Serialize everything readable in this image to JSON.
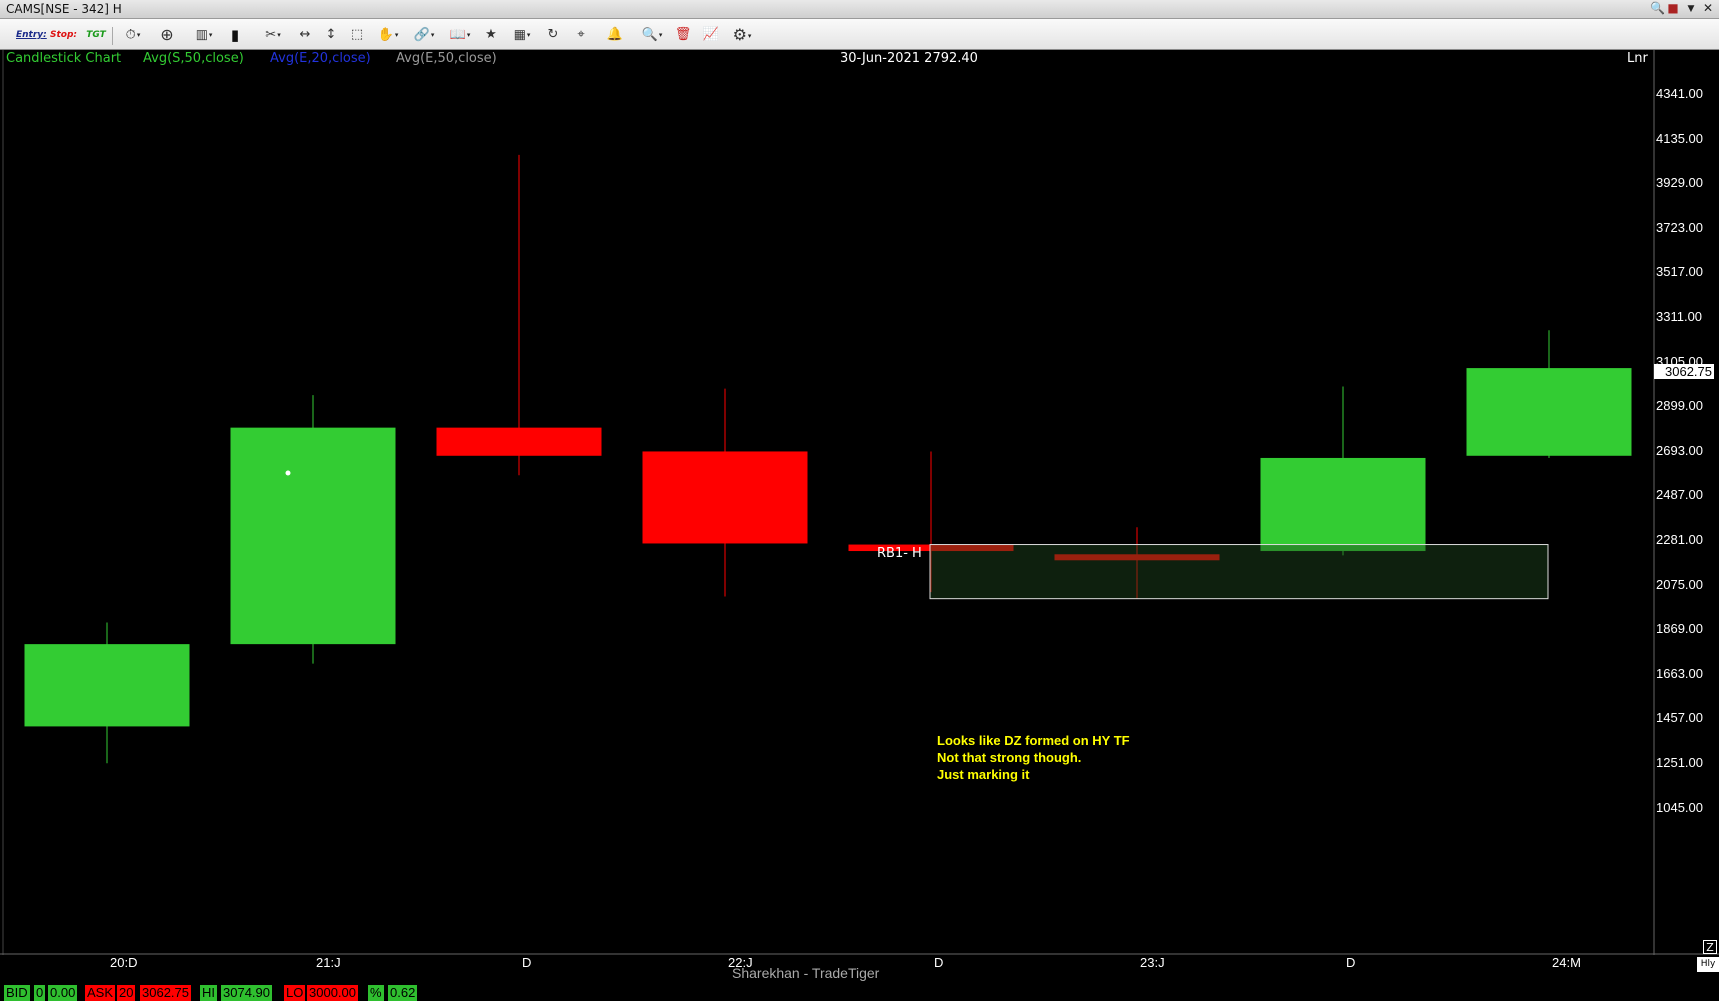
{
  "window": {
    "title": "CAMS[NSE - 342] H",
    "controls": [
      "search-icon",
      "save-icon",
      "menu-icon",
      "close-icon"
    ]
  },
  "toolbar": {
    "entry_label": "Entry:",
    "stop_label": "Stop:",
    "tgt_label": "TGT",
    "icons": [
      "stopwatch-icon",
      "crosshair-icon",
      "chart-type-icon",
      "candles-icon",
      "draw-tools-icon",
      "horizontal-line-icon",
      "vertical-line-icon",
      "zoom-box-icon",
      "hand-icon",
      "link-icon",
      "book-icon",
      "star-icon",
      "indicator-icon",
      "refresh-icon",
      "cursor-icon",
      "alert-icon",
      "search-icon",
      "delete-icon",
      "study-icon",
      "settings-icon"
    ]
  },
  "header": {
    "chart_type": "Candlestick Chart",
    "indicators": [
      {
        "label": "Avg(S,50,close)",
        "color": "#33cc33"
      },
      {
        "label": "Avg(E,20,close)",
        "color": "#2233dd"
      },
      {
        "label": "Avg(E,50,close)",
        "color": "#9a9a9a"
      }
    ],
    "cursor_readout": "30-Jun-2021 2792.40",
    "scale_mode": "Lnr"
  },
  "chart_data": {
    "type": "candlestick",
    "x_labels": [
      "20:D",
      "21:J",
      "D",
      "22:J",
      "D",
      "23:J",
      "D",
      "24:M"
    ],
    "y_ticks": [
      "4341.00",
      "4135.00",
      "3929.00",
      "3723.00",
      "3517.00",
      "3311.00",
      "3105.00",
      "2899.00",
      "2693.00",
      "2487.00",
      "2281.00",
      "2075.00",
      "1869.00",
      "1663.00",
      "1457.00",
      "1251.00",
      "1045.00"
    ],
    "ylim": [
      880,
      4460
    ],
    "last_price": "3062.75",
    "up_color": "#33cc33",
    "down_color": "#ff0000",
    "candles": [
      {
        "open": 1420,
        "high": 1900,
        "low": 1250,
        "close": 1800
      },
      {
        "open": 1800,
        "high": 2950,
        "low": 1710,
        "close": 2800
      },
      {
        "open": 2800,
        "high": 4060,
        "low": 2580,
        "close": 2670
      },
      {
        "open": 2690,
        "high": 2980,
        "low": 2020,
        "close": 2265
      },
      {
        "open": 2260,
        "high": 2690,
        "low": 2040,
        "close": 2230
      },
      {
        "open": 2215,
        "high": 2340,
        "low": 2010,
        "close": 2200
      },
      {
        "open": 2230,
        "high": 2990,
        "low": 2210,
        "close": 2660
      },
      {
        "open": 2670,
        "high": 3250,
        "low": 2660,
        "close": 3075
      }
    ],
    "demand_zone": {
      "top": 2260,
      "bottom": 2010,
      "label": "RB1- H"
    },
    "annotation": [
      "Looks like DZ formed on HY TF",
      "Not that strong though.",
      "Just marking it"
    ],
    "watermark": "Sharekhan - TradeTiger"
  },
  "status_bar": {
    "bid_label": "BID",
    "bid_qty": "0",
    "bid_price": "0.00",
    "ask_label": "ASK",
    "ask_qty": "20",
    "ask_price": "3062.75",
    "hi_label": "HI",
    "hi_value": "3074.90",
    "lo_label": "LO",
    "lo_value": "3000.00",
    "pct_label": "%",
    "pct_value": "0.62"
  },
  "corner": {
    "z_label": "Z",
    "hly_label": "Hly"
  }
}
